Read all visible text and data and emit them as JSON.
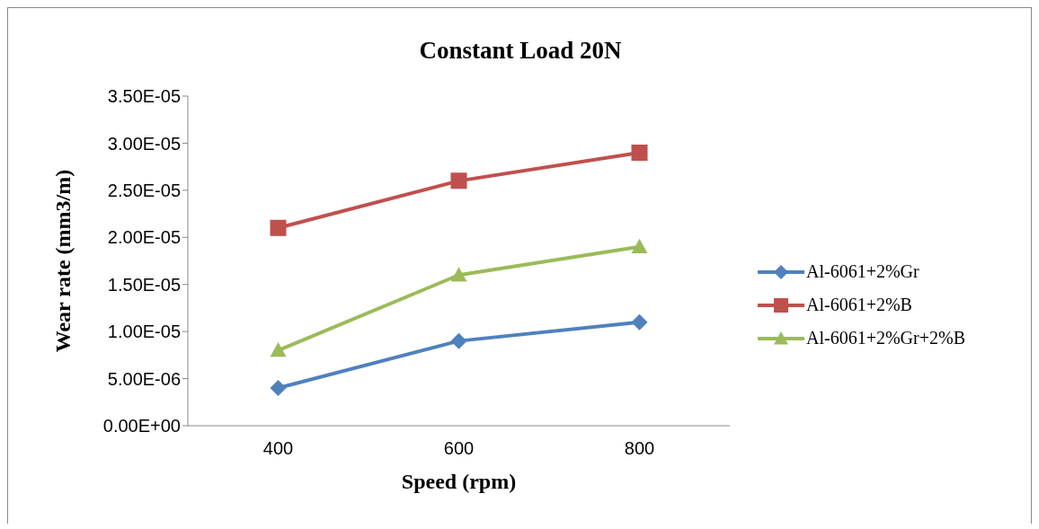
{
  "chart_data": {
    "type": "line",
    "title": "Constant Load 20N",
    "xlabel": "Speed (rpm)",
    "ylabel": "Wear rate (mm3/m)",
    "categories": [
      "400",
      "600",
      "800"
    ],
    "series": [
      {
        "name": "Al-6061+2%Gr",
        "color": "#4f81bd",
        "marker": "diamond",
        "values": [
          4e-06,
          9e-06,
          1.1e-05
        ]
      },
      {
        "name": "Al-6061+2%B",
        "color": "#c0504d",
        "marker": "square",
        "values": [
          2.1e-05,
          2.6e-05,
          2.9e-05
        ]
      },
      {
        "name": "Al-6061+2%Gr+2%B",
        "color": "#9bbb59",
        "marker": "triangle",
        "values": [
          8e-06,
          1.6e-05,
          1.9e-05
        ]
      }
    ],
    "ylim": [
      0,
      3.5e-05
    ],
    "yticks": [
      {
        "value": 0,
        "label": "0.00E+00"
      },
      {
        "value": 5e-06,
        "label": "5.00E-06"
      },
      {
        "value": 1e-05,
        "label": "1.00E-05"
      },
      {
        "value": 1.5e-05,
        "label": "1.50E-05"
      },
      {
        "value": 2e-05,
        "label": "2.00E-05"
      },
      {
        "value": 2.5e-05,
        "label": "2.50E-05"
      },
      {
        "value": 3e-05,
        "label": "3.00E-05"
      },
      {
        "value": 3.5e-05,
        "label": "3.50E-05"
      }
    ],
    "grid": false,
    "legend": "right",
    "line_style": "solid"
  }
}
